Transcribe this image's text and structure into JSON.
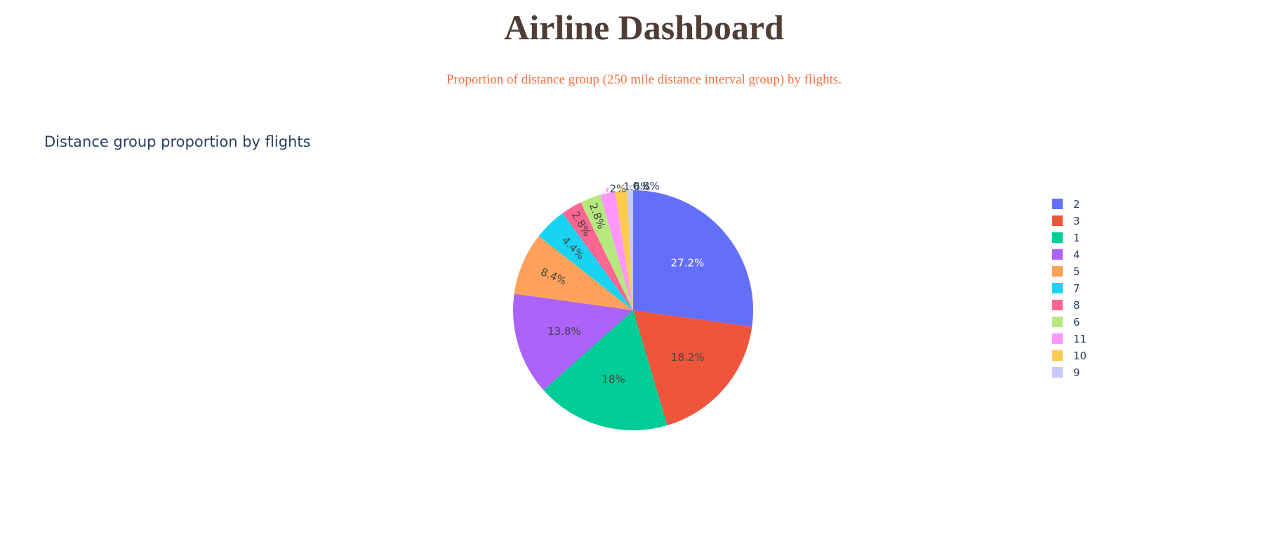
{
  "header": {
    "title": "Airline Dashboard",
    "subtitle": "Proportion of distance group (250 mile distance interval group) by flights."
  },
  "chart_data": {
    "type": "pie",
    "title": "Distance group proportion by flights",
    "legend_position": "right",
    "slices": [
      {
        "label": "2",
        "percent": 27.2,
        "text": "27.2%",
        "color": "#636EFA",
        "text_color": "#ffffff"
      },
      {
        "label": "3",
        "percent": 18.2,
        "text": "18.2%",
        "color": "#EF553B",
        "text_color": "#444444"
      },
      {
        "label": "1",
        "percent": 18.0,
        "text": "18%",
        "color": "#00CC96",
        "text_color": "#444444"
      },
      {
        "label": "4",
        "percent": 13.8,
        "text": "13.8%",
        "color": "#AB63FA",
        "text_color": "#444444"
      },
      {
        "label": "5",
        "percent": 8.4,
        "text": "8.4%",
        "color": "#FFA15A",
        "text_color": "#444444"
      },
      {
        "label": "7",
        "percent": 4.4,
        "text": "4.4%",
        "color": "#19D3F3",
        "text_color": "#444444"
      },
      {
        "label": "8",
        "percent": 2.8,
        "text": "2.8%",
        "color": "#FF6692",
        "text_color": "#444444"
      },
      {
        "label": "6",
        "percent": 2.8,
        "text": "2.8%",
        "color": "#B6E880",
        "text_color": "#444444"
      },
      {
        "label": "11",
        "percent": 2.0,
        "text": "2%",
        "color": "#FF97FF",
        "text_color": "#2a3f5f"
      },
      {
        "label": "10",
        "percent": 1.6,
        "text": "1.6%",
        "color": "#FECB52",
        "text_color": "#2a3f5f"
      },
      {
        "label": "9",
        "percent": 0.8,
        "text": "0.8%",
        "color": "#C6CAFD",
        "text_color": "#2a3f5f"
      }
    ]
  }
}
